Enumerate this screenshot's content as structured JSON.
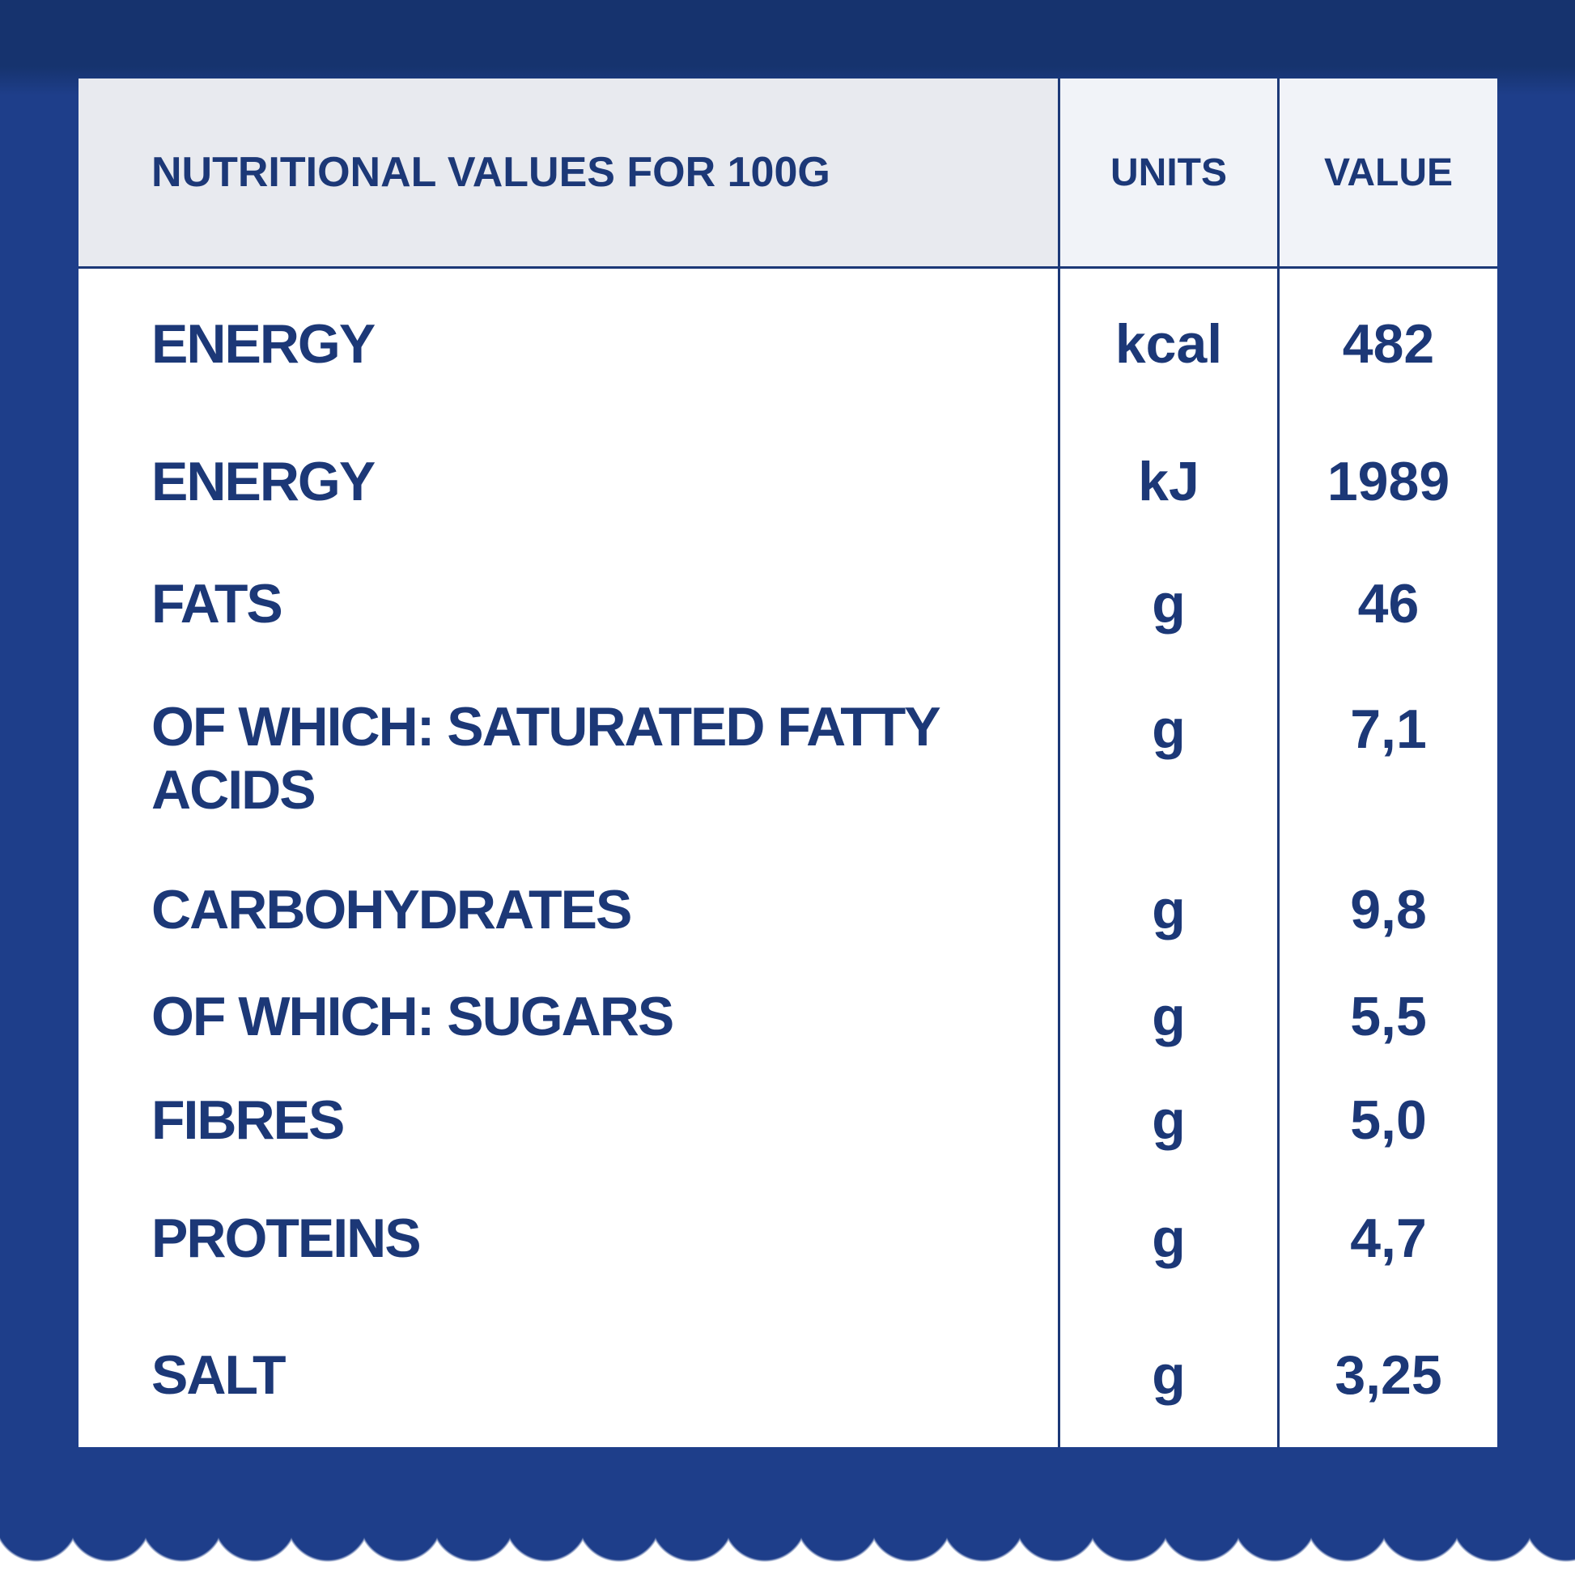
{
  "colors": {
    "background_blue": "#1e3e8a",
    "background_blue_top": "#16336e",
    "text_navy": "#1c3877",
    "divider_navy": "#1c3877",
    "header_left_bg": "#e8eaef",
    "header_cols_bg": "#f1f3f8",
    "card_bg": "#ffffff",
    "scallop_white": "#ffffff"
  },
  "table": {
    "header": {
      "title": "NUTRITIONAL VALUES FOR 100G",
      "units_label": "UNITS",
      "value_label": "VALUE"
    },
    "rows": [
      {
        "label": "ENERGY",
        "unit": "kcal",
        "value": "482"
      },
      {
        "label": "ENERGY",
        "unit": "kJ",
        "value": "1989"
      },
      {
        "label": "FATS",
        "unit": "g",
        "value": "46"
      },
      {
        "label": "OF WHICH: SATURATED FATTY ACIDS",
        "unit": "g",
        "value": "7,1"
      },
      {
        "label": "CARBOHYDRATES",
        "unit": "g",
        "value": "9,8"
      },
      {
        "label": "OF WHICH: SUGARS",
        "unit": "g",
        "value": "5,5"
      },
      {
        "label": "FIBRES",
        "unit": "g",
        "value": "5,0"
      },
      {
        "label": "PROTEINS",
        "unit": "g",
        "value": "4,7"
      },
      {
        "label": "SALT",
        "unit": "g",
        "value": "3,25"
      }
    ]
  }
}
